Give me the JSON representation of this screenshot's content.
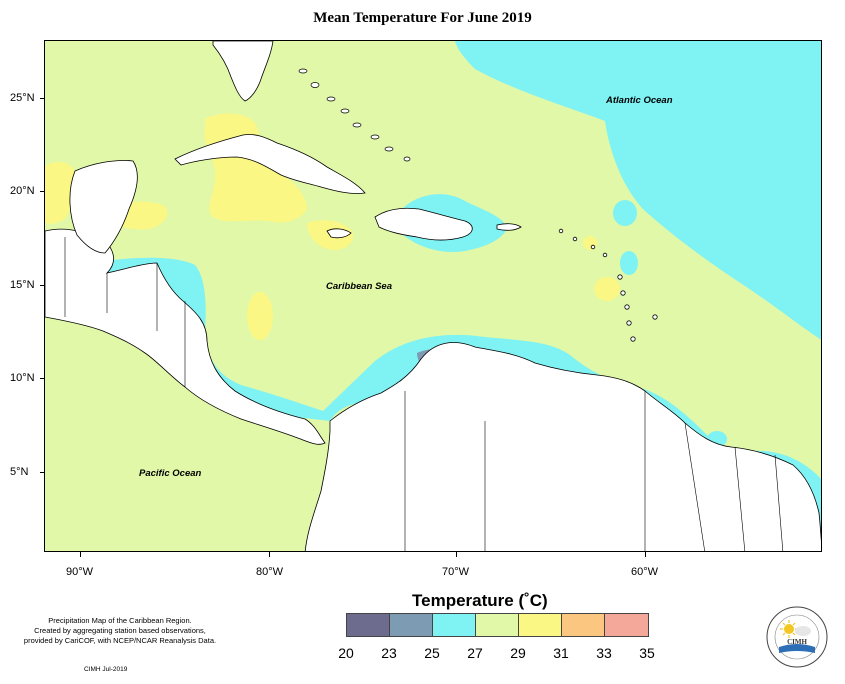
{
  "title": "Mean Temperature For June 2019",
  "oceans": {
    "atlantic": "Atlantic Ocean",
    "caribbean": "Caribbean Sea",
    "pacific": "Pacific Ocean"
  },
  "lat_ticks": [
    "25°N",
    "20°N",
    "15°N",
    "10°N",
    "5°N"
  ],
  "lon_ticks": [
    "90°W",
    "80°W",
    "70°W",
    "60°W"
  ],
  "legend": {
    "title": "Temperature (˚C)",
    "breaks": [
      "20",
      "23",
      "25",
      "27",
      "29",
      "31",
      "33",
      "35"
    ],
    "colors": [
      "#6e6c8e",
      "#7e9bb4",
      "#7ff2f4",
      "#e0f8a8",
      "#faf784",
      "#fbc780",
      "#f3a89a"
    ]
  },
  "notes": {
    "line1": "Precipitation Map of the Caribbean Region.",
    "line2": "Created by aggregating station based observations,",
    "line3": "provided by CariCOF, with NCEP/NCAR Reanalysis Data.",
    "credit": "CIMH Jul-2019"
  },
  "logo": {
    "name": "CIMH",
    "ring_top": "Caribbean Institute for",
    "ring_bottom": "Meteorology and Hydrology"
  },
  "colors": {
    "land": "#ffffff",
    "t20_23": "#6e6c8e",
    "t23_25": "#7e9bb4",
    "t25_27": "#7ff2f4",
    "t27_29": "#e0f8a8",
    "t29_31": "#faf784"
  }
}
